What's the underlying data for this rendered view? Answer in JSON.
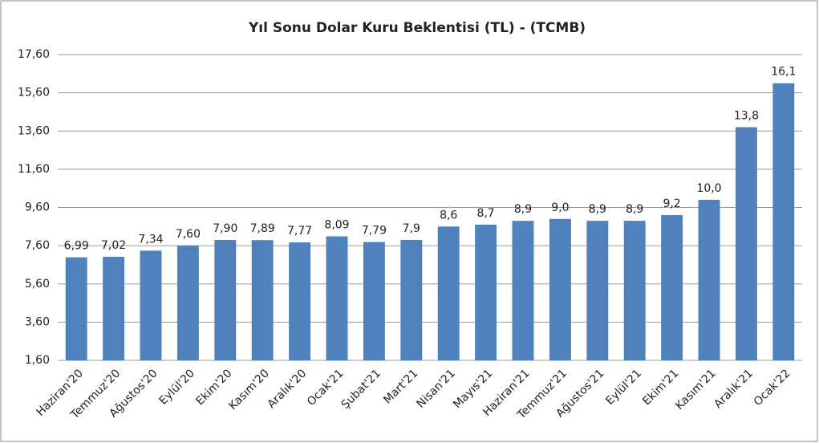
{
  "chart_data": {
    "type": "bar",
    "title": "Yıl Sonu Dolar Kuru Beklentisi (TL) - (TCMB)",
    "categories": [
      "Haziran'20",
      "Temmuz'20",
      "Ağustos'20",
      "Eylül'20",
      "Ekim'20",
      "Kasım'20",
      "Aralık'20",
      "Ocak'21",
      "Şubat'21",
      "Mart'21",
      "Nisan'21",
      "Mayıs'21",
      "Haziran'21",
      "Temmuz'21",
      "Ağustos'21",
      "Eylül'21",
      "Ekim'21",
      "Kasım'21",
      "Aralık'21",
      "Ocak'22"
    ],
    "values": [
      6.99,
      7.02,
      7.34,
      7.6,
      7.9,
      7.89,
      7.77,
      8.09,
      7.79,
      7.9,
      8.6,
      8.7,
      8.9,
      9.0,
      8.9,
      8.9,
      9.2,
      10.0,
      13.8,
      16.1
    ],
    "value_labels": [
      "6,99",
      "7,02",
      "7,34",
      "7,60",
      "7,90",
      "7,89",
      "7,77",
      "8,09",
      "7,79",
      "7,9",
      "8,6",
      "8,7",
      "8,9",
      "9,0",
      "8,9",
      "8,9",
      "9,2",
      "10,0",
      "13,8",
      "16,1"
    ],
    "color": "#4f81bd",
    "ylim": [
      1.6,
      17.6
    ],
    "yticks": [
      {
        "value": 1.6,
        "label": "1,60"
      },
      {
        "value": 3.6,
        "label": "3,60"
      },
      {
        "value": 5.6,
        "label": "5,60"
      },
      {
        "value": 7.6,
        "label": "7,60"
      },
      {
        "value": 9.6,
        "label": "9,60"
      },
      {
        "value": 11.6,
        "label": "11,60"
      },
      {
        "value": 13.6,
        "label": "13,60"
      },
      {
        "value": 15.6,
        "label": "15,60"
      },
      {
        "value": 17.6,
        "label": "17,60"
      }
    ],
    "grid": true
  }
}
